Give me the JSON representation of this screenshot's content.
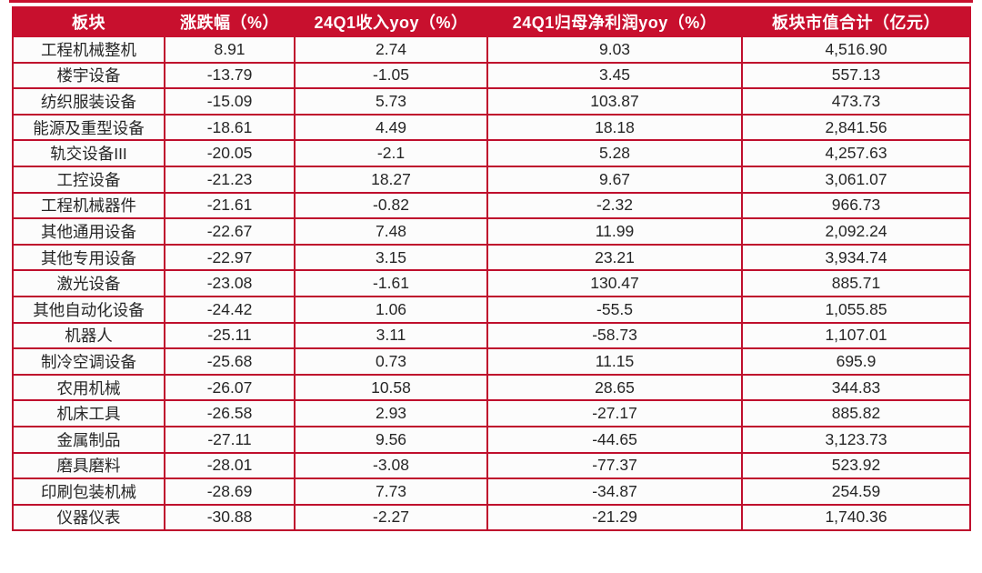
{
  "colors": {
    "header_bg": "#c8102e",
    "header_text": "#ffffff",
    "border": "#bf0f2d",
    "row_bg": "#fcfcfc",
    "body_text": "#262626"
  },
  "chart_data": {
    "type": "table",
    "columns": [
      "板块",
      "涨跌幅（%）",
      "24Q1收入yoy（%）",
      "24Q1归母净利润yoy（%）",
      "板块市值合计（亿元）"
    ],
    "rows": [
      [
        "工程机械整机",
        "8.91",
        "2.74",
        "9.03",
        "4,516.90"
      ],
      [
        "楼宇设备",
        "-13.79",
        "-1.05",
        "3.45",
        "557.13"
      ],
      [
        "纺织服装设备",
        "-15.09",
        "5.73",
        "103.87",
        "473.73"
      ],
      [
        "能源及重型设备",
        "-18.61",
        "4.49",
        "18.18",
        "2,841.56"
      ],
      [
        "轨交设备III",
        "-20.05",
        "-2.1",
        "5.28",
        "4,257.63"
      ],
      [
        "工控设备",
        "-21.23",
        "18.27",
        "9.67",
        "3,061.07"
      ],
      [
        "工程机械器件",
        "-21.61",
        "-0.82",
        "-2.32",
        "966.73"
      ],
      [
        "其他通用设备",
        "-22.67",
        "7.48",
        "11.99",
        "2,092.24"
      ],
      [
        "其他专用设备",
        "-22.97",
        "3.15",
        "23.21",
        "3,934.74"
      ],
      [
        "激光设备",
        "-23.08",
        "-1.61",
        "130.47",
        "885.71"
      ],
      [
        "其他自动化设备",
        "-24.42",
        "1.06",
        "-55.5",
        "1,055.85"
      ],
      [
        "机器人",
        "-25.11",
        "3.11",
        "-58.73",
        "1,107.01"
      ],
      [
        "制冷空调设备",
        "-25.68",
        "0.73",
        "11.15",
        "695.9"
      ],
      [
        "农用机械",
        "-26.07",
        "10.58",
        "28.65",
        "344.83"
      ],
      [
        "机床工具",
        "-26.58",
        "2.93",
        "-27.17",
        "885.82"
      ],
      [
        "金属制品",
        "-27.11",
        "9.56",
        "-44.65",
        "3,123.73"
      ],
      [
        "磨具磨料",
        "-28.01",
        "-3.08",
        "-77.37",
        "523.92"
      ],
      [
        "印刷包装机械",
        "-28.69",
        "7.73",
        "-34.87",
        "254.59"
      ],
      [
        "仪器仪表",
        "-30.88",
        "-2.27",
        "-21.29",
        "1,740.36"
      ]
    ]
  }
}
